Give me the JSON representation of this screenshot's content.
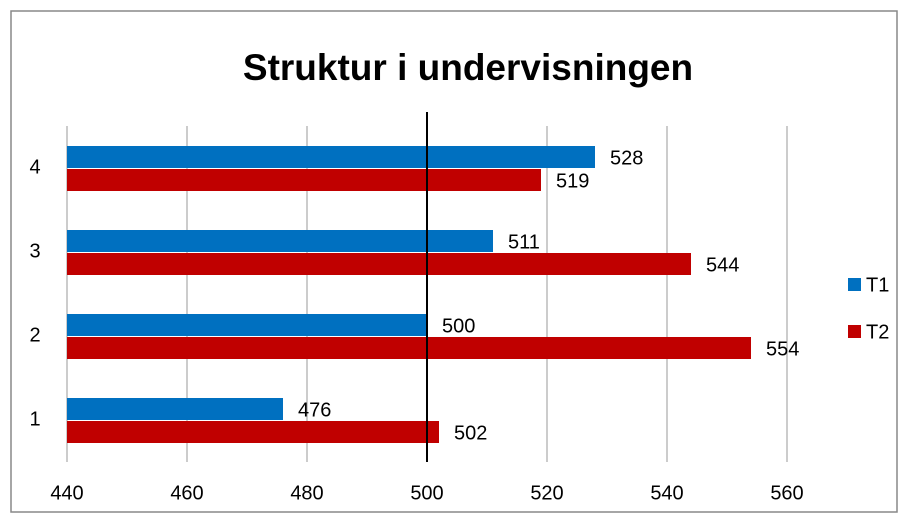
{
  "chart_data": {
    "type": "hbar",
    "title": "Struktur i undervisningen",
    "categories": [
      "1",
      "2",
      "3",
      "4"
    ],
    "series": [
      {
        "name": "T1",
        "color": "#0070C0",
        "values": [
          476,
          500,
          511,
          528
        ]
      },
      {
        "name": "T2",
        "color": "#C00000",
        "values": [
          502,
          554,
          544,
          519
        ]
      }
    ],
    "xlim": [
      440,
      560
    ],
    "xticks": [
      440,
      460,
      480,
      500,
      520,
      540,
      560
    ],
    "grid": true,
    "reference_line": 500,
    "legend": "right"
  }
}
